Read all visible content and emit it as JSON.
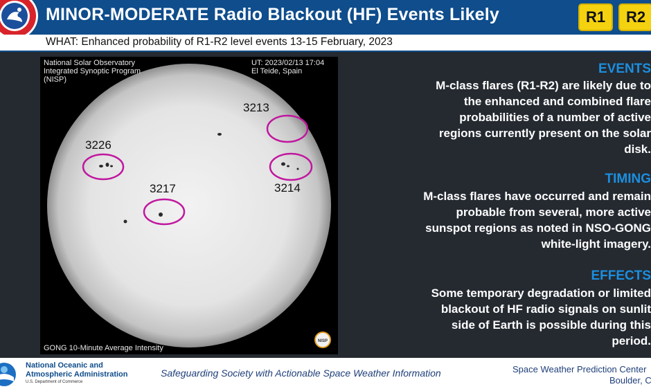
{
  "header": {
    "title": "MINOR-MODERATE Radio Blackout (HF) Events Likely",
    "badges": [
      "R1",
      "R2"
    ],
    "subtitle": "WHAT: Enhanced probability of R1-R2 level events 13-15 February, 2023",
    "colors": {
      "bar": "#0f4d8c",
      "badge": "#f5d20f"
    }
  },
  "image": {
    "source_text": "National Solar Observatory Integrated Synoptic Program (NISP)",
    "timestamp": "UT:  2023/02/13 17:04",
    "location": "El Teide, Spain",
    "caption": "GONG 10-Minute Average Intensity",
    "corner_logo": "NISP",
    "regions": [
      "3213",
      "3226",
      "3214",
      "3217"
    ],
    "highlight_color": "#c0179f"
  },
  "sections": [
    {
      "heading": "EVENTS",
      "body": "M-class flares (R1-R2) are likely due to the enhanced and combined flare probabilities of a number of active regions currently present on the solar disk."
    },
    {
      "heading": "TIMING",
      "body": "M-class flares have occurred and remain probable from several, more active sunspot regions as noted in NSO-GONG white-light imagery."
    },
    {
      "heading": "EFFECTS",
      "body": "Some temporary degradation or limited blackout of HF radio signals on sunlit side of Earth is possible during this period."
    }
  ],
  "footer": {
    "agency": "National Oceanic and Atmospheric Administration",
    "dept": "U.S. Department of Commerce",
    "tagline": "Safeguarding Society with  Actionable Space Weather Information",
    "center": "Space Weather Prediction Center",
    "city": "Boulder, CO"
  }
}
